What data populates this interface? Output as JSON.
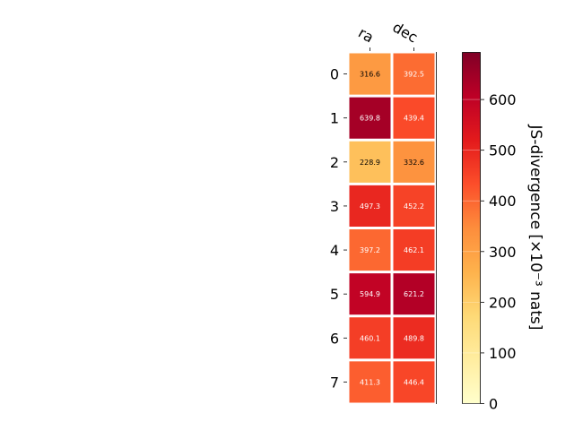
{
  "chart_data": {
    "type": "heatmap",
    "columns": [
      "ra",
      "dec"
    ],
    "rows": [
      "0",
      "1",
      "2",
      "3",
      "4",
      "5",
      "6",
      "7"
    ],
    "values": [
      [
        316.6,
        392.5
      ],
      [
        639.8,
        439.4
      ],
      [
        228.9,
        332.6
      ],
      [
        497.3,
        452.2
      ],
      [
        397.2,
        462.1
      ],
      [
        594.9,
        621.2
      ],
      [
        460.1,
        489.8
      ],
      [
        411.3,
        446.4
      ]
    ],
    "value_labels": [
      [
        "316.6",
        "392.5"
      ],
      [
        "639.8",
        "439.4"
      ],
      [
        "228.9",
        "332.6"
      ],
      [
        "497.3",
        "452.2"
      ],
      [
        "397.2",
        "462.1"
      ],
      [
        "594.9",
        "621.2"
      ],
      [
        "460.1",
        "489.8"
      ],
      [
        "411.3",
        "446.4"
      ]
    ],
    "colorbar": {
      "label": "JS-divergence [×10⁻³ nats]",
      "range": [
        0,
        693
      ],
      "ticks": [
        0,
        100,
        200,
        300,
        400,
        500,
        600
      ],
      "colormap": "YlOrRd"
    },
    "grid": false
  }
}
